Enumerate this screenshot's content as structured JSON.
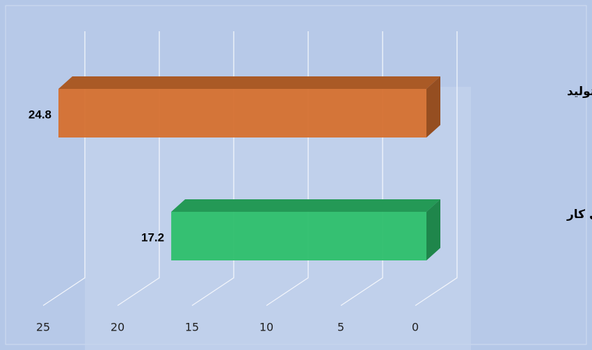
{
  "chart_data": {
    "type": "bar",
    "orientation": "horizontal",
    "x_reversed": true,
    "categories": [
      "مالکان ابزار تولید",
      "صاحبان نیروی کار"
    ],
    "values": [
      24.8,
      17.2
    ],
    "colors": [
      "#d5702f",
      "#2dbf6b"
    ],
    "xlim": [
      0,
      25
    ],
    "xticks": [
      0,
      5,
      10,
      15,
      20,
      25
    ],
    "grid": true
  }
}
